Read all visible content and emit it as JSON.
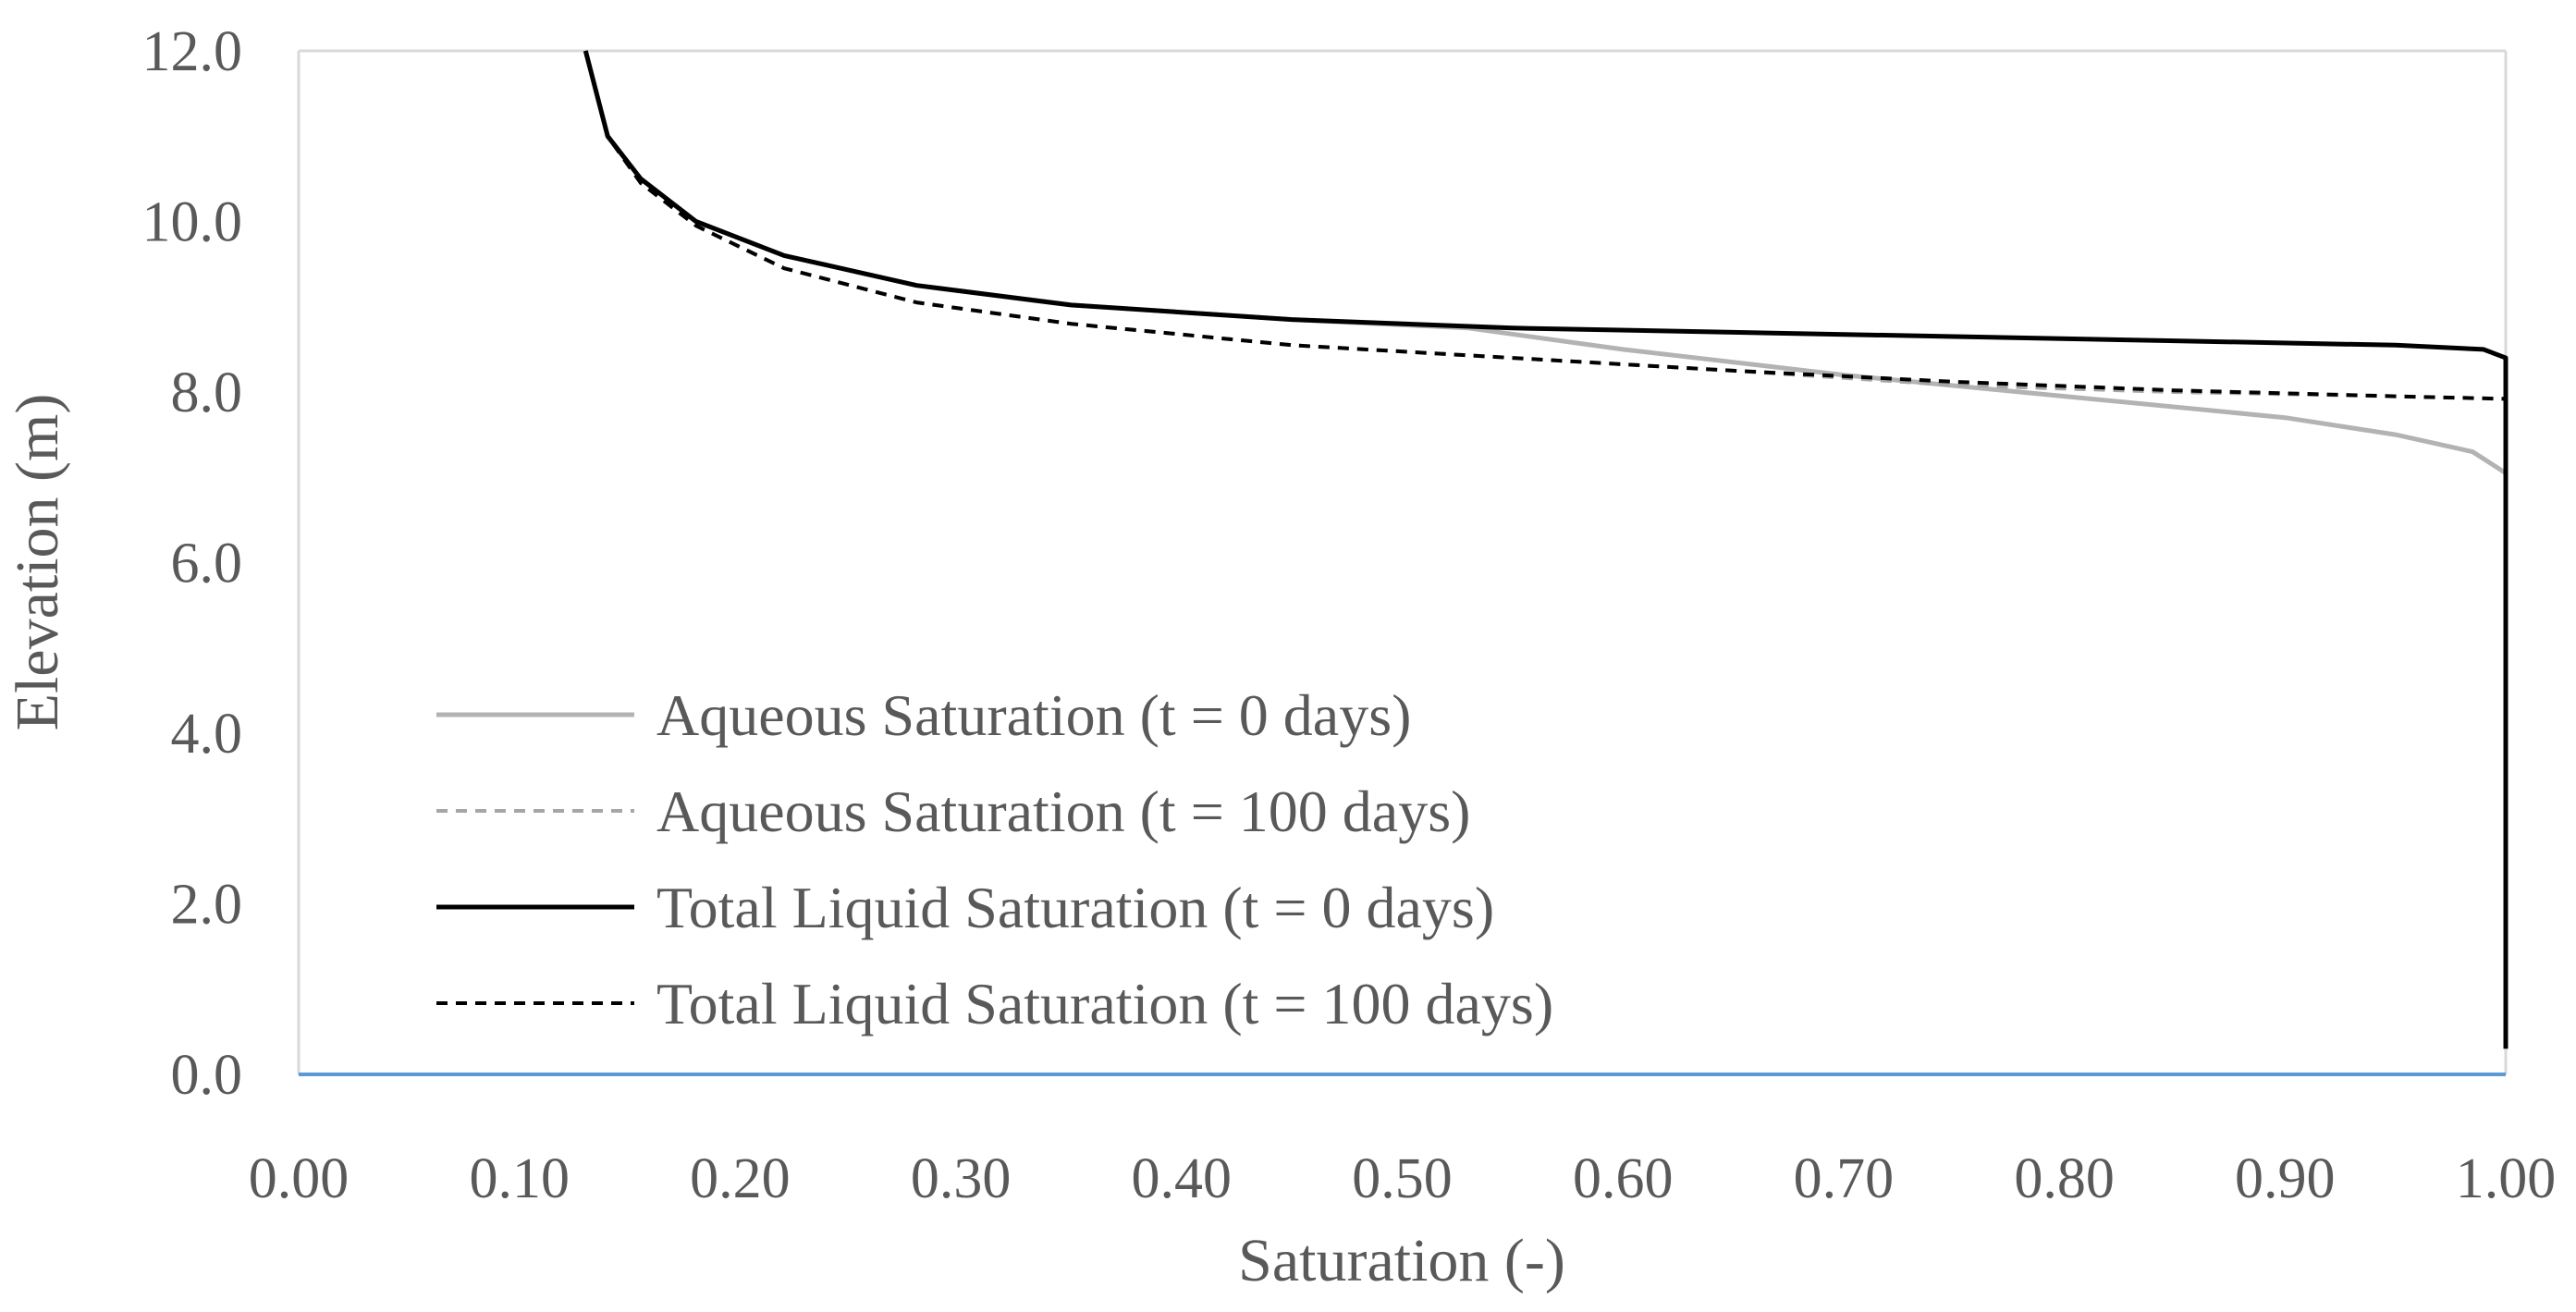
{
  "chart_data": {
    "type": "line",
    "title": "",
    "xlabel": "Saturation (-)",
    "ylabel": "Elevation (m)",
    "xlim": [
      0,
      1
    ],
    "ylim": [
      0,
      12
    ],
    "x_ticks": [
      "0.00",
      "0.10",
      "0.20",
      "0.30",
      "0.40",
      "0.50",
      "0.60",
      "0.70",
      "0.80",
      "0.90",
      "1.00"
    ],
    "y_ticks": [
      "0.0",
      "2.0",
      "4.0",
      "6.0",
      "8.0",
      "10.0",
      "12.0"
    ],
    "grid": false,
    "legend_position": "bottom-left",
    "series": [
      {
        "name": "Aqueous Saturation (t = 0 days)",
        "color": "#b3b3b3",
        "dash": "solid",
        "points": [
          [
            0.13,
            12.0
          ],
          [
            0.14,
            11.0
          ],
          [
            0.155,
            10.5
          ],
          [
            0.18,
            10.0
          ],
          [
            0.22,
            9.6
          ],
          [
            0.28,
            9.25
          ],
          [
            0.35,
            9.02
          ],
          [
            0.45,
            8.85
          ],
          [
            0.53,
            8.75
          ],
          [
            0.6,
            8.5
          ],
          [
            0.7,
            8.2
          ],
          [
            0.8,
            7.95
          ],
          [
            0.9,
            7.7
          ],
          [
            0.95,
            7.5
          ],
          [
            0.985,
            7.3
          ],
          [
            1.0,
            7.05
          ],
          [
            1.0,
            0.3
          ]
        ]
      },
      {
        "name": "Aqueous Saturation (t = 100 days)",
        "color": "#a6a6a6",
        "dash": "dashed",
        "points": [
          [
            0.13,
            12.0
          ],
          [
            0.14,
            11.0
          ],
          [
            0.155,
            10.45
          ],
          [
            0.18,
            9.95
          ],
          [
            0.22,
            9.45
          ],
          [
            0.28,
            9.05
          ],
          [
            0.35,
            8.8
          ],
          [
            0.45,
            8.55
          ],
          [
            0.55,
            8.4
          ],
          [
            0.65,
            8.25
          ],
          [
            0.75,
            8.08
          ],
          [
            0.85,
            8.0
          ],
          [
            0.95,
            7.95
          ],
          [
            1.0,
            7.92
          ]
        ]
      },
      {
        "name": "Total Liquid Saturation (t = 0 days)",
        "color": "#000000",
        "dash": "solid",
        "points": [
          [
            0.13,
            12.0
          ],
          [
            0.14,
            11.0
          ],
          [
            0.155,
            10.5
          ],
          [
            0.18,
            10.0
          ],
          [
            0.22,
            9.6
          ],
          [
            0.28,
            9.25
          ],
          [
            0.35,
            9.02
          ],
          [
            0.45,
            8.85
          ],
          [
            0.55,
            8.75
          ],
          [
            0.65,
            8.7
          ],
          [
            0.75,
            8.65
          ],
          [
            0.85,
            8.6
          ],
          [
            0.95,
            8.55
          ],
          [
            0.99,
            8.5
          ],
          [
            1.0,
            8.4
          ],
          [
            1.0,
            0.3
          ]
        ]
      },
      {
        "name": "Total Liquid Saturation (t = 100 days)",
        "color": "#000000",
        "dash": "dashed",
        "points": [
          [
            0.13,
            12.0
          ],
          [
            0.14,
            11.0
          ],
          [
            0.155,
            10.45
          ],
          [
            0.18,
            9.95
          ],
          [
            0.22,
            9.45
          ],
          [
            0.28,
            9.05
          ],
          [
            0.35,
            8.8
          ],
          [
            0.45,
            8.55
          ],
          [
            0.55,
            8.4
          ],
          [
            0.65,
            8.25
          ],
          [
            0.75,
            8.12
          ],
          [
            0.85,
            8.02
          ],
          [
            0.95,
            7.95
          ],
          [
            1.0,
            7.92
          ]
        ]
      }
    ]
  }
}
